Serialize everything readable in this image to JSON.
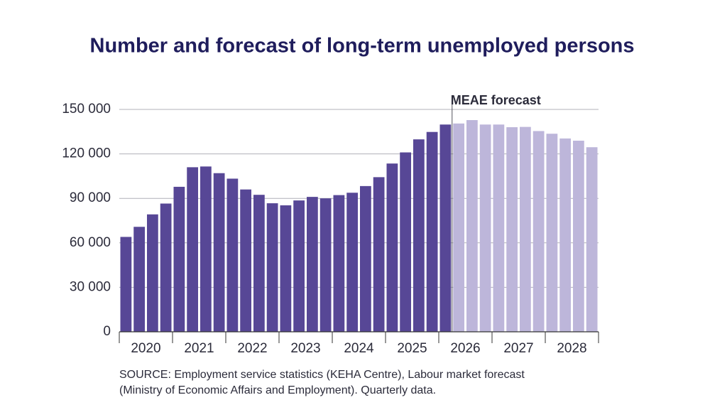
{
  "chart_data": {
    "type": "bar",
    "title": "Number and forecast of long-term unemployed persons",
    "categories": [
      "2020",
      null,
      null,
      null,
      "2021",
      null,
      null,
      null,
      "2022",
      null,
      null,
      null,
      "2023",
      null,
      null,
      null,
      "2024",
      null,
      null,
      null,
      "2025",
      null,
      null,
      null,
      "2026",
      null,
      null,
      null,
      "2027",
      null,
      null,
      null,
      "2028",
      null,
      null,
      null
    ],
    "series": [
      {
        "color": "#574796",
        "values": [
          64000,
          70800,
          79200,
          86500,
          97800,
          111000,
          111500,
          107000,
          103300,
          96000,
          92400,
          86700,
          85300,
          88600,
          91000,
          90000,
          92200,
          93800,
          98300,
          104300,
          113500,
          121000,
          129800,
          134800,
          139800,
          null,
          null,
          null,
          null,
          null,
          null,
          null,
          null,
          null,
          null,
          null
        ]
      },
      {
        "name": "MEAE forecast",
        "color": "#bdb6da",
        "values": [
          null,
          null,
          null,
          null,
          null,
          null,
          null,
          null,
          null,
          null,
          null,
          null,
          null,
          null,
          null,
          null,
          null,
          null,
          null,
          null,
          null,
          null,
          null,
          null,
          null,
          140500,
          142800,
          139800,
          139800,
          138000,
          138200,
          135400,
          133600,
          130400,
          128900,
          124500
        ]
      }
    ],
    "ylim": [
      0,
      150000
    ],
    "yticks": [
      0,
      {
        "value": 30000,
        "label": "30 000"
      },
      {
        "value": 60000,
        "label": "60 000"
      },
      {
        "value": 90000,
        "label": "90 000"
      },
      {
        "value": 120000,
        "label": "120 000"
      },
      {
        "value": 150000,
        "label": "150 000"
      }
    ],
    "grid": true,
    "source": [
      "SOURCE: Employment service statistics (KEHA Centre), Labour market forecast",
      "(Ministry of Economic Affairs and Employment). Quarterly data."
    ]
  }
}
